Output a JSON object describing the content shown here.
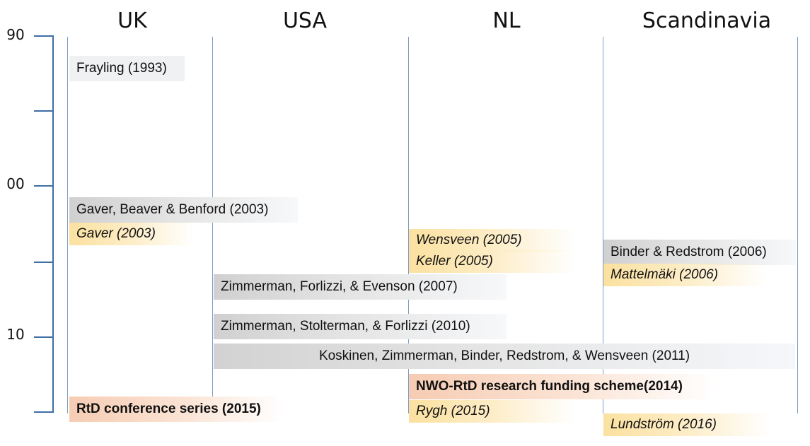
{
  "regions": {
    "uk": "UK",
    "usa": "USA",
    "nl": "NL",
    "scandinavia": "Scandinavia"
  },
  "axis": {
    "label_90": "90",
    "label_00": "00",
    "label_10": "10"
  },
  "entries": {
    "frayling": "Frayling (1993)",
    "gaver_beaver_benford": "Gaver, Beaver & Benford (2003)",
    "gaver": "Gaver (2003)",
    "wensveen": "Wensveen (2005)",
    "keller": "Keller (2005)",
    "binder_redstrom": "Binder & Redstrom (2006)",
    "mattelmaki": "Mattelmäki (2006)",
    "zimmerman_forlizzi_evenson": "Zimmerman, Forlizzi, & Evenson (2007)",
    "zimmerman_stolterman_forlizzi": "Zimmerman, Stolterman, & Forlizzi (2010)",
    "koskinen": "Koskinen, Zimmerman, Binder, Redstrom, & Wensveen (2011)",
    "nwo_rtd": "NWO-RtD research funding scheme(2014)",
    "rtd_conference": "RtD conference series (2015)",
    "rygh": "Rygh (2015)",
    "lundstrom": "Lundström (2016)"
  },
  "colors": {
    "axis": "#3f6ea6",
    "column_line": "#7b9cc2",
    "gray_box": "#d0d0d0",
    "yellow_box": "#fbe1a0",
    "peach_box": "#f6ccb3"
  }
}
